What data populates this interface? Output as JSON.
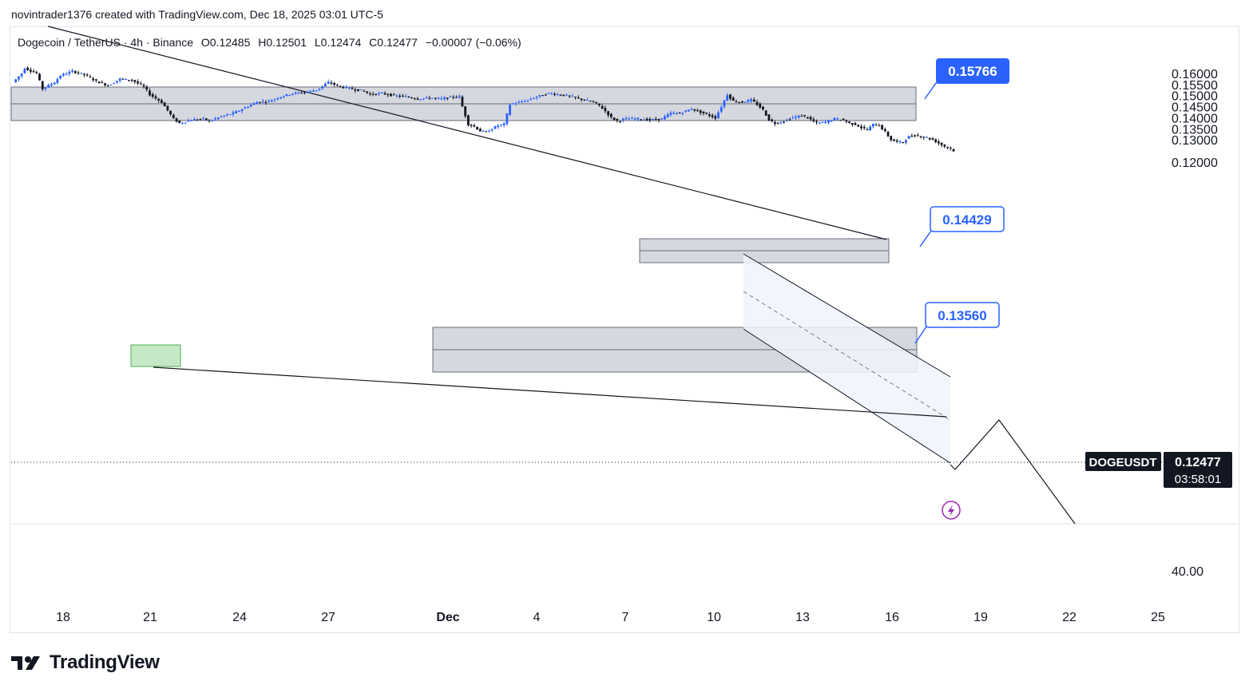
{
  "header": {
    "attribution": "novintrader1376 created with TradingView.com, Dec 18, 2025 03:01 UTC-5"
  },
  "legend": {
    "symbol": "Dogecoin / TetherUS · 4h · Binance",
    "open": "O0.12485",
    "high": "H0.12501",
    "low": "L0.12474",
    "close": "C0.12477",
    "change": "−0.00007 (−0.06%)"
  },
  "callouts": [
    {
      "label": "0.15766",
      "style": "filled"
    },
    {
      "label": "0.14429",
      "style": "outline"
    },
    {
      "label": "0.13560",
      "style": "outline"
    }
  ],
  "price_tag": {
    "symbol": "DOGEUSDT",
    "price": "0.12477",
    "countdown": "03:58:01"
  },
  "indicator_axis_label": "40.00",
  "logo_text": "TradingView",
  "colors": {
    "up": "#2962ff",
    "down": "#131722",
    "zone": "#d1d4dc",
    "callout": "#2962ff",
    "demand": "#b7e4b9"
  },
  "chart_data": {
    "type": "candlestick",
    "symbol": "DOGEUSDT",
    "timeframe": "4h",
    "ylim": [
      0.1183,
      0.1645
    ],
    "y_ticks": [
      "0.16000",
      "0.15500",
      "0.15000",
      "0.14500",
      "0.14000",
      "0.13500",
      "0.13000",
      "0.12000"
    ],
    "x_ticks": [
      "18",
      "21",
      "24",
      "27",
      "Dec",
      "4",
      "7",
      "10",
      "13",
      "16",
      "19",
      "22",
      "25"
    ],
    "price_path": [
      [
        0,
        0.156
      ],
      [
        3,
        0.16
      ],
      [
        4,
        0.1625
      ],
      [
        8,
        0.16
      ],
      [
        10,
        0.153
      ],
      [
        14,
        0.156
      ],
      [
        16,
        0.159
      ],
      [
        20,
        0.161
      ],
      [
        24,
        0.1595
      ],
      [
        28,
        0.1565
      ],
      [
        32,
        0.1545
      ],
      [
        36,
        0.1575
      ],
      [
        40,
        0.157
      ],
      [
        44,
        0.154
      ],
      [
        46,
        0.1505
      ],
      [
        50,
        0.147
      ],
      [
        54,
        0.1395
      ],
      [
        56,
        0.1375
      ],
      [
        60,
        0.139
      ],
      [
        64,
        0.1395
      ],
      [
        66,
        0.1385
      ],
      [
        70,
        0.1405
      ],
      [
        74,
        0.142
      ],
      [
        78,
        0.1445
      ],
      [
        82,
        0.147
      ],
      [
        86,
        0.1475
      ],
      [
        90,
        0.1495
      ],
      [
        94,
        0.151
      ],
      [
        98,
        0.1515
      ],
      [
        102,
        0.1525
      ],
      [
        106,
        0.156
      ],
      [
        110,
        0.154
      ],
      [
        114,
        0.153
      ],
      [
        118,
        0.152
      ],
      [
        120,
        0.1505
      ],
      [
        124,
        0.151
      ],
      [
        128,
        0.15
      ],
      [
        132,
        0.1495
      ],
      [
        136,
        0.1485
      ],
      [
        140,
        0.149
      ],
      [
        144,
        0.1485
      ],
      [
        148,
        0.1495
      ],
      [
        150,
        0.1495
      ],
      [
        151,
        0.145
      ],
      [
        153,
        0.137
      ],
      [
        155,
        0.136
      ],
      [
        157,
        0.134
      ],
      [
        159,
        0.1335
      ],
      [
        161,
        0.135
      ],
      [
        163,
        0.1365
      ],
      [
        165,
        0.137
      ],
      [
        167,
        0.146
      ],
      [
        170,
        0.147
      ],
      [
        173,
        0.148
      ],
      [
        176,
        0.1495
      ],
      [
        180,
        0.151
      ],
      [
        183,
        0.1505
      ],
      [
        186,
        0.15
      ],
      [
        189,
        0.149
      ],
      [
        192,
        0.148
      ],
      [
        195,
        0.147
      ],
      [
        197,
        0.1455
      ],
      [
        199,
        0.143
      ],
      [
        201,
        0.14
      ],
      [
        203,
        0.1385
      ],
      [
        206,
        0.1395
      ],
      [
        210,
        0.1395
      ],
      [
        214,
        0.139
      ],
      [
        218,
        0.1395
      ],
      [
        221,
        0.142
      ],
      [
        224,
        0.142
      ],
      [
        228,
        0.144
      ],
      [
        232,
        0.142
      ],
      [
        236,
        0.14
      ],
      [
        238,
        0.145
      ],
      [
        240,
        0.1505
      ],
      [
        242,
        0.1475
      ],
      [
        245,
        0.147
      ],
      [
        248,
        0.148
      ],
      [
        250,
        0.146
      ],
      [
        252,
        0.1435
      ],
      [
        254,
        0.139
      ],
      [
        256,
        0.1375
      ],
      [
        259,
        0.1385
      ],
      [
        262,
        0.14
      ],
      [
        265,
        0.141
      ],
      [
        267,
        0.14
      ],
      [
        270,
        0.1375
      ],
      [
        273,
        0.138
      ],
      [
        276,
        0.1395
      ],
      [
        279,
        0.139
      ],
      [
        281,
        0.1375
      ],
      [
        283,
        0.137
      ],
      [
        285,
        0.1355
      ],
      [
        287,
        0.1345
      ],
      [
        289,
        0.137
      ],
      [
        291,
        0.1365
      ],
      [
        293,
        0.1335
      ],
      [
        295,
        0.13
      ],
      [
        297,
        0.129
      ],
      [
        299,
        0.129
      ],
      [
        301,
        0.1315
      ],
      [
        303,
        0.132
      ],
      [
        305,
        0.1315
      ],
      [
        307,
        0.131
      ],
      [
        309,
        0.13
      ],
      [
        311,
        0.1285
      ],
      [
        313,
        0.127
      ],
      [
        315,
        0.126
      ],
      [
        316,
        0.12477
      ]
    ]
  }
}
